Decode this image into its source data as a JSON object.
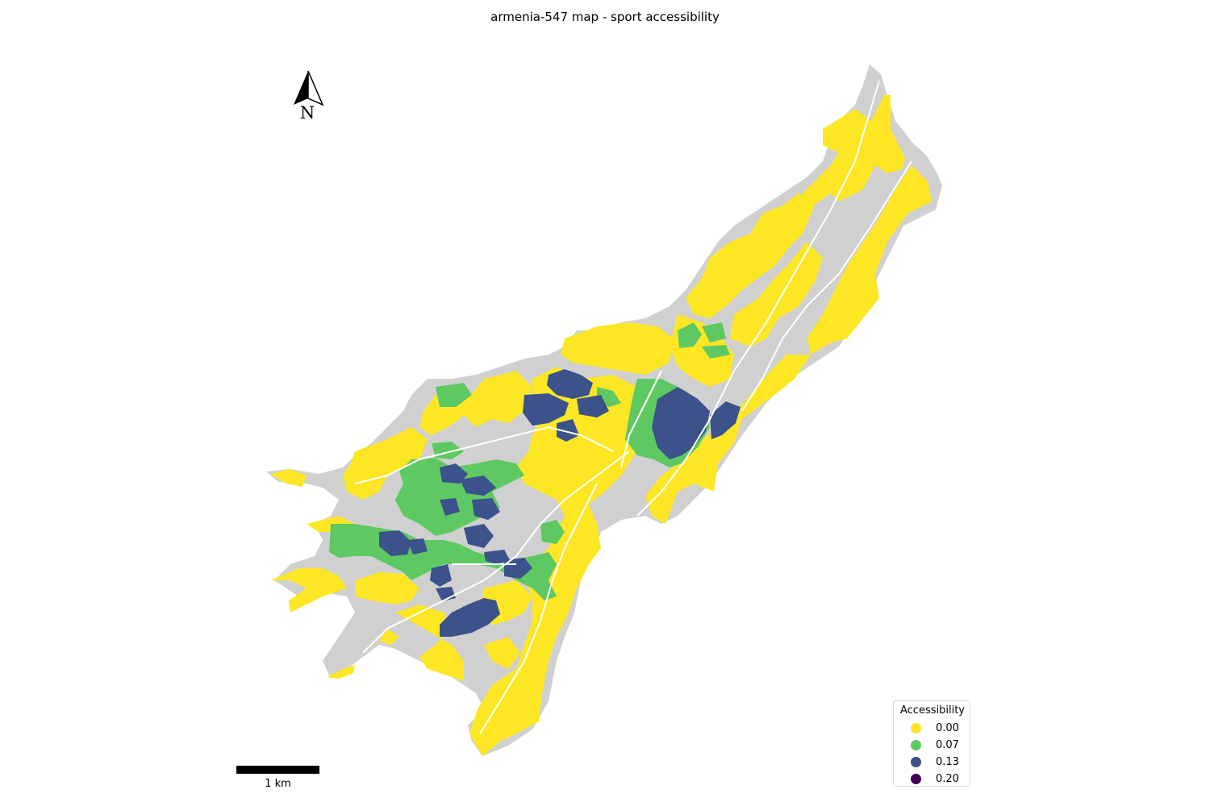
{
  "title": "armenia-547 map - sport accessibility",
  "north_arrow": {
    "label": "N"
  },
  "scale_bar": {
    "label": "1 km"
  },
  "legend": {
    "title": "Accessibility",
    "items": [
      {
        "label": "0.00",
        "color": "#fde725"
      },
      {
        "label": "0.07",
        "color": "#5ec962"
      },
      {
        "label": "0.13",
        "color": "#3b528b"
      },
      {
        "label": "0.20",
        "color": "#440154"
      }
    ]
  },
  "colors": {
    "no_data": "#d0d0d0",
    "background": "#ffffff",
    "roads": "#ffffff"
  }
}
